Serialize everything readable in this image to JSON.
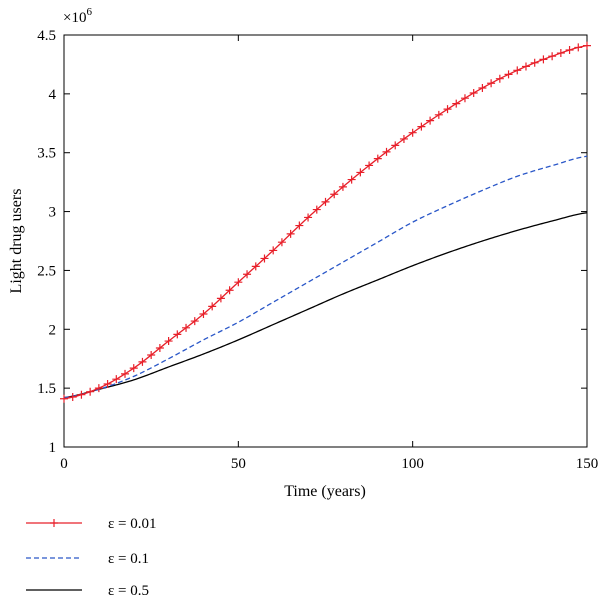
{
  "chart_data": {
    "type": "line",
    "title": "",
    "xlabel": "Time (years)",
    "ylabel": "Light drug users",
    "y_multiplier_label": "×10",
    "y_multiplier_exponent": "6",
    "xlim": [
      0,
      150
    ],
    "ylim": [
      1,
      4.5
    ],
    "xticks": [
      0,
      50,
      100,
      150
    ],
    "xtick_labels": [
      "0",
      "50",
      "100",
      "150"
    ],
    "yticks": [
      1,
      1.5,
      2,
      2.5,
      3,
      3.5,
      4,
      4.5
    ],
    "ytick_labels": [
      "1",
      "1.5",
      "2",
      "2.5",
      "3",
      "3.5",
      "4",
      "4.5"
    ],
    "grid": false,
    "legend_position": "below plot, left",
    "x": [
      0,
      10,
      20,
      30,
      40,
      50,
      60,
      70,
      80,
      90,
      100,
      110,
      120,
      130,
      140,
      150
    ],
    "series": [
      {
        "name": "ε = 0.01",
        "color": "#e8202a",
        "style": "solid",
        "marker": "plus",
        "values": [
          1.41,
          1.5,
          1.67,
          1.9,
          2.13,
          2.4,
          2.67,
          2.95,
          3.21,
          3.45,
          3.67,
          3.87,
          4.05,
          4.2,
          4.32,
          4.41
        ]
      },
      {
        "name": "ε = 0.1",
        "color": "#2a57c8",
        "style": "dashed",
        "marker": "none",
        "values": [
          1.42,
          1.49,
          1.6,
          1.75,
          1.91,
          2.06,
          2.23,
          2.4,
          2.57,
          2.74,
          2.91,
          3.05,
          3.18,
          3.3,
          3.39,
          3.47
        ]
      },
      {
        "name": "ε = 0.5",
        "color": "#000000",
        "style": "solid",
        "marker": "none",
        "values": [
          1.42,
          1.49,
          1.57,
          1.68,
          1.79,
          1.91,
          2.04,
          2.17,
          2.3,
          2.42,
          2.54,
          2.65,
          2.75,
          2.84,
          2.92,
          2.99
        ]
      }
    ]
  }
}
